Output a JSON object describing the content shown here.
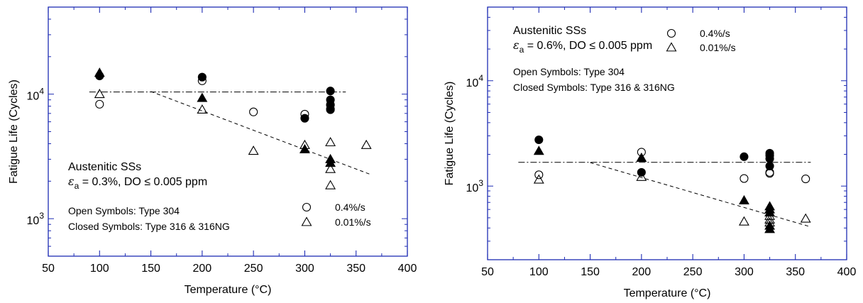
{
  "chart_data": [
    {
      "type": "scatter",
      "xlabel": "Temperature (°C)",
      "ylabel": "Fatigue Life (Cycles)",
      "xlim": [
        50,
        400
      ],
      "ylim": [
        500,
        50000
      ],
      "yscale": "log",
      "xticks": [
        "50",
        "100",
        "150",
        "200",
        "250",
        "300",
        "350",
        "400"
      ],
      "ytick_labels": [
        {
          "value": 1000,
          "base": "10",
          "exp": "3"
        },
        {
          "value": 10000,
          "base": "10",
          "exp": "4"
        }
      ],
      "annotation": {
        "line1": "Austenitic SSs",
        "line2_symbol": "ε",
        "line2_sub": "a",
        "line2_rest": " = 0.3%, DO ≤ 0.005 ppm",
        "line3": "Open Symbols: Type 304",
        "line4": "Closed Symbols: Type 316 & 316NG"
      },
      "legend": [
        {
          "marker": "circle",
          "label": "0.4%/s"
        },
        {
          "marker": "triangle",
          "label": "0.01%/s"
        }
      ],
      "series": [
        {
          "marker": "circle",
          "fill": "open",
          "points": [
            [
              100,
              8300
            ],
            [
              200,
              12800
            ],
            [
              250,
              7200
            ],
            [
              300,
              6900
            ],
            [
              325,
              8200
            ],
            [
              325,
              7600
            ]
          ]
        },
        {
          "marker": "circle",
          "fill": "closed",
          "points": [
            [
              100,
              14000
            ],
            [
              200,
              13700
            ],
            [
              300,
              6400
            ],
            [
              325,
              10600
            ],
            [
              325,
              9000
            ],
            [
              325,
              8200
            ],
            [
              325,
              7500
            ]
          ]
        },
        {
          "marker": "triangle",
          "fill": "open",
          "points": [
            [
              100,
              10000
            ],
            [
              200,
              7500
            ],
            [
              250,
              3500
            ],
            [
              300,
              3900
            ],
            [
              325,
              4100
            ],
            [
              325,
              2500
            ],
            [
              325,
              1850
            ],
            [
              360,
              3900
            ]
          ]
        },
        {
          "marker": "triangle",
          "fill": "closed",
          "points": [
            [
              100,
              14800
            ],
            [
              200,
              9300
            ],
            [
              300,
              3600
            ],
            [
              325,
              3000
            ],
            [
              325,
              2800
            ]
          ]
        }
      ],
      "fit_lines": [
        {
          "style": "dash-dot",
          "points": [
            [
              90,
              10400
            ],
            [
              340,
              10400
            ]
          ]
        },
        {
          "style": "dashed",
          "points": [
            [
              150,
              10500
            ],
            [
              365,
              2250
            ]
          ]
        }
      ]
    },
    {
      "type": "scatter",
      "xlabel": "Temperature (°C)",
      "ylabel": "Fatigue Life (Cycles)",
      "xlim": [
        50,
        400
      ],
      "ylim": [
        200,
        50000
      ],
      "yscale": "log",
      "xticks": [
        "50",
        "100",
        "150",
        "200",
        "250",
        "300",
        "350",
        "400"
      ],
      "ytick_labels": [
        {
          "value": 1000,
          "base": "10",
          "exp": "3"
        },
        {
          "value": 10000,
          "base": "10",
          "exp": "4"
        }
      ],
      "annotation": {
        "line1": "Austenitic SSs",
        "line2_symbol": "ε",
        "line2_sub": "a",
        "line2_rest": " = 0.6%, DO ≤ 0.005 ppm",
        "line3": "Open Symbols: Type 304",
        "line4": "Closed Symbols: Type 316 & 316NG"
      },
      "legend": [
        {
          "marker": "circle",
          "label": "0.4%/s"
        },
        {
          "marker": "triangle",
          "label": "0.01%/s"
        }
      ],
      "series": [
        {
          "marker": "circle",
          "fill": "open",
          "points": [
            [
              100,
              1280
            ],
            [
              200,
              2100
            ],
            [
              300,
              1180
            ],
            [
              325,
              1320
            ],
            [
              325,
              1350
            ],
            [
              360,
              1170
            ]
          ]
        },
        {
          "marker": "circle",
          "fill": "closed",
          "points": [
            [
              100,
              2750
            ],
            [
              200,
              1350
            ],
            [
              300,
              1900
            ],
            [
              325,
              2050
            ],
            [
              325,
              1950
            ],
            [
              325,
              1820
            ],
            [
              325,
              1550
            ]
          ]
        },
        {
          "marker": "triangle",
          "fill": "open",
          "points": [
            [
              100,
              1150
            ],
            [
              200,
              1220
            ],
            [
              300,
              460
            ],
            [
              325,
              520
            ],
            [
              325,
              480
            ],
            [
              325,
              450
            ],
            [
              360,
              490
            ]
          ]
        },
        {
          "marker": "triangle",
          "fill": "closed",
          "points": [
            [
              100,
              2150
            ],
            [
              200,
              1850
            ],
            [
              300,
              730
            ],
            [
              325,
              640
            ],
            [
              325,
              600
            ],
            [
              325,
              560
            ],
            [
              325,
              420
            ],
            [
              325,
              390
            ]
          ]
        }
      ],
      "fit_lines": [
        {
          "style": "dash-dot",
          "points": [
            [
              80,
              1680
            ],
            [
              365,
              1680
            ]
          ]
        },
        {
          "style": "dashed",
          "points": [
            [
              150,
              1670
            ],
            [
              365,
              410
            ]
          ]
        }
      ]
    }
  ]
}
